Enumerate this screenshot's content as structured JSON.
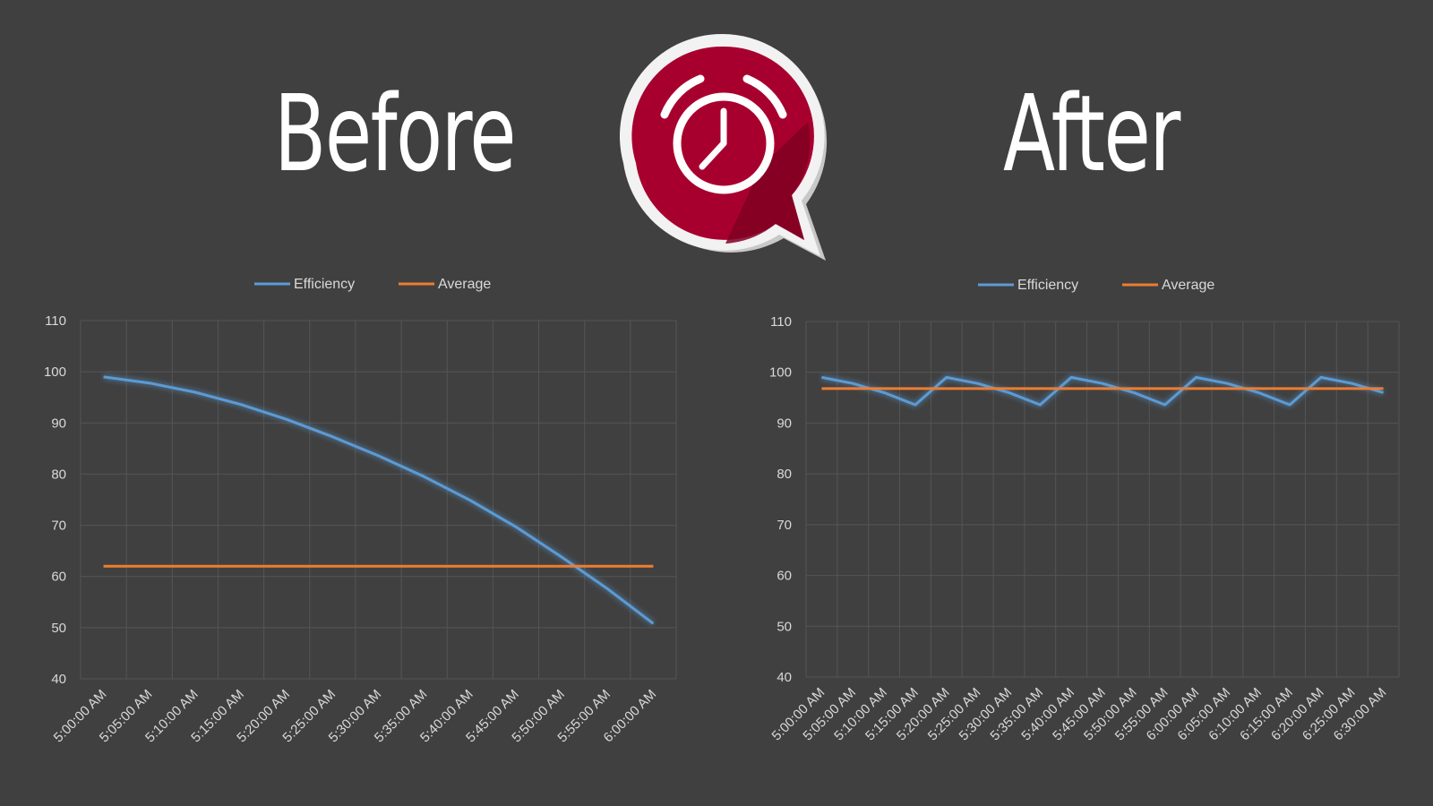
{
  "headings": {
    "before": "Before",
    "after": "After"
  },
  "logo": {
    "icon": "alarm-clock-chat-bubble-icon",
    "color": "#a8002e"
  },
  "colors": {
    "background": "#404040",
    "efficiency": "#5b9bd5",
    "average": "#ed7d31"
  },
  "chart_data": [
    {
      "type": "line",
      "title": "",
      "legend_position": "top",
      "grid": true,
      "ylim": [
        40,
        110
      ],
      "yticks": [
        40,
        50,
        60,
        70,
        80,
        90,
        100,
        110
      ],
      "categories": [
        "5:00:00 AM",
        "5:05:00 AM",
        "5:10:00 AM",
        "5:15:00 AM",
        "5:20:00 AM",
        "5:25:00 AM",
        "5:30:00 AM",
        "5:35:00 AM",
        "5:40:00 AM",
        "5:45:00 AM",
        "5:50:00 AM",
        "5:55:00 AM",
        "6:00:00 AM"
      ],
      "series": [
        {
          "name": "Efficiency",
          "values": [
            99,
            97.8,
            96,
            93.6,
            90.7,
            87.3,
            83.6,
            79.5,
            74.9,
            69.7,
            63.8,
            57.6,
            50.8
          ]
        },
        {
          "name": "Average",
          "values": [
            62,
            62,
            62,
            62,
            62,
            62,
            62,
            62,
            62,
            62,
            62,
            62,
            62
          ]
        }
      ]
    },
    {
      "type": "line",
      "title": "",
      "legend_position": "top",
      "grid": true,
      "ylim": [
        40,
        110
      ],
      "yticks": [
        40,
        50,
        60,
        70,
        80,
        90,
        100,
        110
      ],
      "categories": [
        "5:00:00 AM",
        "5:05:00 AM",
        "5:10:00 AM",
        "5:15:00 AM",
        "5:20:00 AM",
        "5:25:00 AM",
        "5:30:00 AM",
        "5:35:00 AM",
        "5:40:00 AM",
        "5:45:00 AM",
        "5:50:00 AM",
        "5:55:00 AM",
        "6:00:00 AM",
        "6:05:00 AM",
        "6:10:00 AM",
        "6:15:00 AM",
        "6:20:00 AM",
        "6:25:00 AM",
        "6:30:00 AM"
      ],
      "series": [
        {
          "name": "Efficiency",
          "values": [
            99,
            97.8,
            96,
            93.6,
            99,
            97.8,
            96,
            93.6,
            99,
            97.8,
            96,
            93.6,
            99,
            97.8,
            96,
            93.6,
            99,
            97.8,
            96
          ]
        },
        {
          "name": "Average",
          "values": [
            96.8,
            96.8,
            96.8,
            96.8,
            96.8,
            96.8,
            96.8,
            96.8,
            96.8,
            96.8,
            96.8,
            96.8,
            96.8,
            96.8,
            96.8,
            96.8,
            96.8,
            96.8,
            96.8
          ]
        }
      ]
    }
  ]
}
